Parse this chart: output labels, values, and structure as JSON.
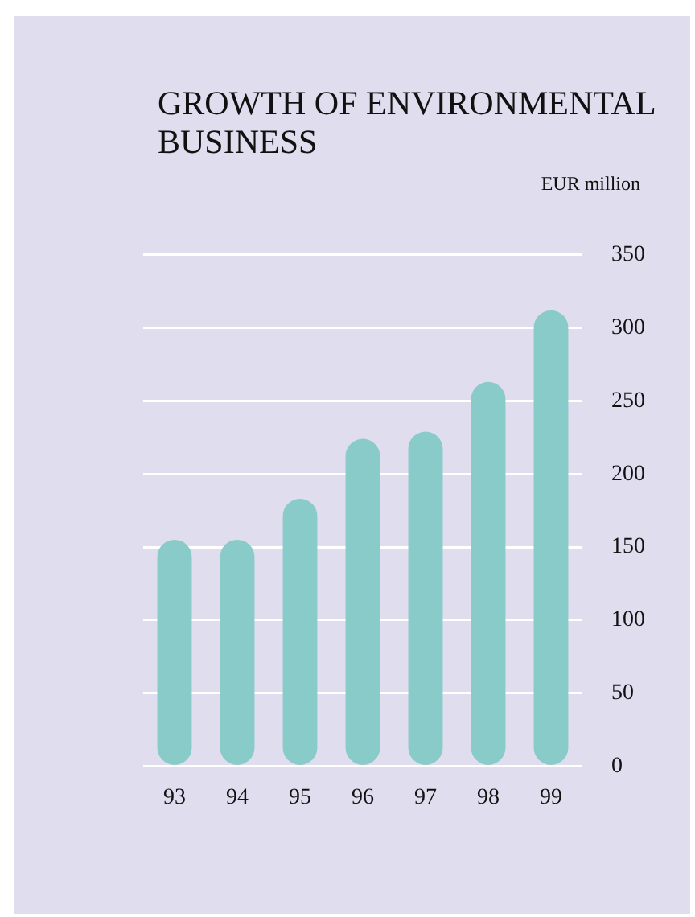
{
  "chart_data": {
    "type": "bar",
    "title": "GROWTH OF ENVIRONMENTAL BUSINESS",
    "ylabel": "EUR million",
    "categories": [
      "93",
      "94",
      "95",
      "96",
      "97",
      "98",
      "99"
    ],
    "values": [
      155,
      155,
      183,
      224,
      229,
      263,
      312
    ],
    "color": "#88cbc8",
    "ylim": [
      0,
      350
    ],
    "yticks": [
      0,
      50,
      100,
      150,
      200,
      250,
      300,
      350
    ],
    "grid": "y",
    "legend": false
  }
}
